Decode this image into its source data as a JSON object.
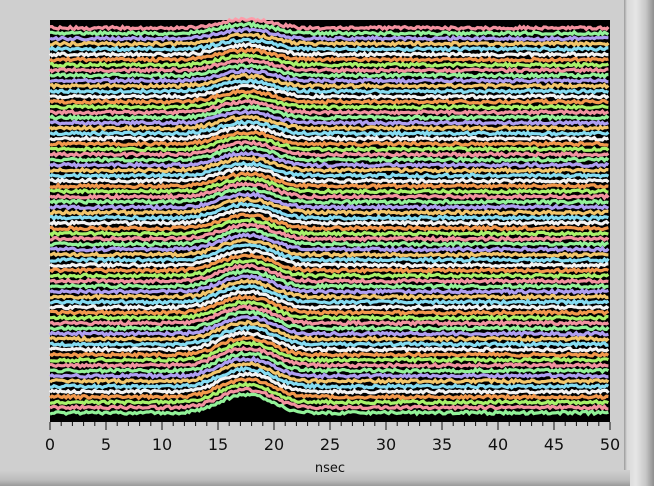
{
  "chart_data": {
    "type": "line",
    "title": "",
    "xlabel": "nsec",
    "ylabel": "",
    "xlim": [
      0,
      50
    ],
    "x_ticks": [
      "0",
      "5",
      "10",
      "15",
      "20",
      "25",
      "30",
      "35",
      "40",
      "45",
      "50"
    ],
    "grid": false,
    "legend": "none",
    "plot_background": "#000000",
    "colors": [
      "#ff9aa8",
      "#9affa0",
      "#b8a8ff",
      "#ffd070",
      "#8ce8ff",
      "#ffffff",
      "#ffa050",
      "#b0ff70"
    ],
    "description_series": {
      "trace_count": 74,
      "pulse_center_ns": 16.5,
      "secondary_peak_ns": 19.0,
      "pulse_width_ns": 6.5,
      "noise": "high-frequency stacked waveform traces"
    }
  }
}
